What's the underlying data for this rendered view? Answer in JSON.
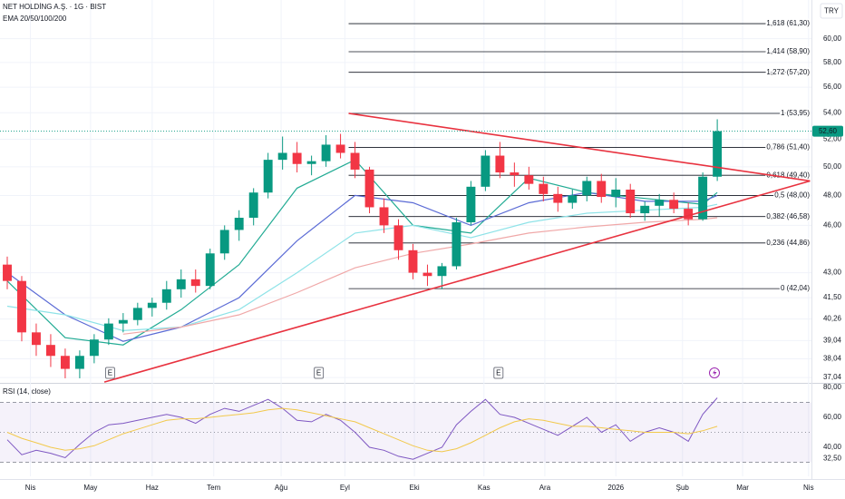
{
  "chart_data": [
    {
      "type": "candlestick",
      "title": "NET HOLDİNG A.Ş. · 1G · BIST",
      "subtitle": "EMA 20/50/100/200",
      "currency": "TRY",
      "log_scale": true,
      "grid": true,
      "up_color": "#089981",
      "down_color": "#f23645",
      "xlim": [
        0,
        56
      ],
      "ylim": [
        36.76,
        63.4
      ],
      "yticks": [
        {
          "value": 37.04,
          "label": "37,04"
        },
        {
          "value": 38.04,
          "label": "38,04"
        },
        {
          "value": 39.04,
          "label": "39,04"
        },
        {
          "value": 40.26,
          "label": "40,26"
        },
        {
          "value": 41.5,
          "label": "41,50"
        },
        {
          "value": 43,
          "label": "43,00"
        },
        {
          "value": 46,
          "label": "46,00"
        },
        {
          "value": 48,
          "label": "48,00"
        },
        {
          "value": 50,
          "label": "50,00"
        },
        {
          "value": 52,
          "label": "52,00"
        },
        {
          "value": 54,
          "label": "54,00"
        },
        {
          "value": 56,
          "label": "56,00"
        },
        {
          "value": 58,
          "label": "58,00"
        },
        {
          "value": 60,
          "label": "60,00"
        }
      ],
      "x": [
        0.5,
        1.5,
        2.5,
        3.5,
        4.5,
        5.5,
        6.5,
        7.5,
        8.5,
        9.5,
        10.5,
        11.5,
        12.5,
        13.5,
        14.5,
        15.5,
        16.5,
        17.5,
        18.5,
        19.5,
        20.5,
        21.5,
        22.5,
        23.5,
        24.5,
        25.5,
        26.5,
        27.5,
        28.5,
        29.5,
        30.5,
        31.5,
        32.5,
        33.5,
        34.5,
        35.5,
        36.5,
        37.5,
        38.5,
        39.5,
        40.5,
        41.5,
        42.5,
        43.5,
        44.5,
        45.5,
        46.5,
        47.5,
        48.5,
        49.5
      ],
      "candles": {
        "open": [
          43.5,
          42.5,
          39.5,
          38.8,
          38.2,
          37.5,
          38.2,
          39.1,
          40,
          40.2,
          40.9,
          41.2,
          42,
          42.6,
          42.2,
          44.2,
          45.7,
          46.5,
          48.2,
          50.5,
          51,
          50.2,
          50.4,
          51.6,
          51,
          49.8,
          47.2,
          46,
          44.4,
          43,
          42.8,
          43.4,
          46.2,
          48.6,
          50.8,
          49.6,
          49.4,
          48.8,
          48.1,
          47.5,
          48,
          49,
          47.9,
          48.4,
          46.8,
          47.3,
          47.7,
          47.1,
          46.4,
          49.3
        ],
        "high": [
          44,
          42.8,
          40,
          39.4,
          38.6,
          38.5,
          39.4,
          40.3,
          40.6,
          41.2,
          41.5,
          42.5,
          43.2,
          43.2,
          44.5,
          46,
          47,
          48.5,
          51,
          52.2,
          51.8,
          50.8,
          52.3,
          52.4,
          51.8,
          50,
          47.8,
          46.4,
          44.8,
          43.5,
          43.6,
          46.5,
          49,
          51.2,
          51.8,
          50.3,
          50,
          49.3,
          48.6,
          48.4,
          49.3,
          49.5,
          49.2,
          48.8,
          47.6,
          48.1,
          48.2,
          47.5,
          49.6,
          53.5
        ],
        "low": [
          42,
          39,
          38.2,
          37.6,
          37,
          37,
          37.8,
          38.8,
          39.5,
          39.9,
          40.4,
          40.8,
          41.5,
          41.8,
          42,
          43.8,
          45,
          46,
          47.8,
          49.8,
          49.6,
          49.4,
          50,
          50.6,
          49.2,
          46.8,
          45.5,
          43.8,
          42.6,
          42.2,
          42,
          43.2,
          46,
          48.3,
          49.2,
          48.6,
          48.4,
          47.6,
          46.9,
          47.1,
          47.6,
          47.5,
          47.2,
          46.5,
          46.3,
          46.6,
          46.8,
          46,
          46.3,
          49
        ],
        "close": [
          42.5,
          39.5,
          38.8,
          38.2,
          37.5,
          38.2,
          39.1,
          40,
          40.2,
          40.9,
          41.2,
          42,
          42.6,
          42.2,
          44.2,
          45.7,
          46.5,
          48.2,
          50.5,
          51,
          50.2,
          50.4,
          51.6,
          51,
          49.8,
          47.2,
          46,
          44.4,
          43,
          42.8,
          43.4,
          46.2,
          48.6,
          50.8,
          49.6,
          49.4,
          48.8,
          48.1,
          47.5,
          48,
          49,
          47.9,
          48.4,
          46.8,
          47.3,
          47.7,
          47.1,
          46.4,
          49.3,
          52.6
        ]
      },
      "series": [
        {
          "color": "#22ab94",
          "x": [
            0.5,
            4.5,
            8.5,
            12.5,
            16.5,
            20.5,
            24.5,
            28.5,
            32.5,
            36.5,
            40.5,
            44.5,
            48.5,
            49.5
          ],
          "values": [
            42.5,
            39.2,
            38.8,
            40.8,
            43.5,
            48.5,
            50.5,
            46,
            45.5,
            49.2,
            48.2,
            47.8,
            47.4,
            48.2
          ]
        },
        {
          "color": "#5b6bd5",
          "x": [
            0.5,
            4.5,
            8.5,
            12.5,
            16.5,
            20.5,
            24.5,
            28.5,
            32.5,
            36.5,
            40.5,
            44.5,
            48.5,
            49.5
          ],
          "values": [
            43,
            40.5,
            39,
            39.8,
            41.5,
            45,
            48,
            47.5,
            46,
            47.5,
            48.2,
            47.6,
            47.6,
            48
          ]
        },
        {
          "color": "#8fe3e8",
          "x": [
            0.5,
            4.5,
            8.5,
            12.5,
            16.5,
            20.5,
            24.5,
            28.5,
            32.5,
            36.5,
            40.5,
            44.5,
            48.5,
            49.5
          ],
          "values": [
            41,
            40.5,
            39.6,
            39.8,
            40.8,
            43,
            45.5,
            46,
            45.2,
            46.2,
            46.8,
            47,
            47.2,
            47.4
          ]
        },
        {
          "color": "#f0a8a8",
          "x": [
            0.5,
            4.5,
            8.5,
            12.5,
            16.5,
            20.5,
            24.5,
            28.5,
            32.5,
            36.5,
            40.5,
            44.5,
            48.5,
            49.5
          ],
          "values": [
            null,
            null,
            39.4,
            39.8,
            40.5,
            41.8,
            43.3,
            44.2,
            44.8,
            45.5,
            45.9,
            46.2,
            46.4,
            46.5
          ]
        }
      ],
      "fib_x": [
        24.06,
        55.9
      ],
      "fib_levels": [
        {
          "value": 61.3,
          "label": "1,618 (61,30)"
        },
        {
          "value": 58.9,
          "label": "1,414 (58,90)"
        },
        {
          "value": 57.2,
          "label": "1,272 (57,20)"
        },
        {
          "value": 53.95,
          "label": "1 (53,95)"
        },
        {
          "value": 51.4,
          "label": "0,786 (51,40)"
        },
        {
          "value": 49.4,
          "label": "0,618 (49,40)"
        },
        {
          "value": 48,
          "label": "0,5 (48,00)"
        },
        {
          "value": 46.58,
          "label": "0,382 (46,58)"
        },
        {
          "value": 44.86,
          "label": "0,236 (44,86)"
        },
        {
          "value": 42.04,
          "label": "0 (42,04)"
        }
      ],
      "trendlines": [
        {
          "x": [
            24.06,
            55.9
          ],
          "y": [
            53.95,
            49.0
          ]
        },
        {
          "x": [
            7.2,
            55.9
          ],
          "y": [
            36.8,
            49.0
          ]
        }
      ],
      "trend_color": "#e8323f",
      "last_price": {
        "value": 52.6,
        "label": "52,60"
      },
      "earnings": [
        {
          "x": 7.6,
          "label": "E"
        },
        {
          "x": 22,
          "label": "E"
        },
        {
          "x": 34.4,
          "label": "E"
        }
      ]
    },
    {
      "type": "line",
      "title": "RSI (14, close)",
      "xlim": [
        0,
        56
      ],
      "ylim": [
        20.6,
        82.4
      ],
      "yticks": [
        {
          "value": 80,
          "label": "80,00"
        },
        {
          "value": 60,
          "label": "60,00"
        },
        {
          "value": 40,
          "label": "40,00"
        },
        {
          "value": 32.5,
          "label": "32,50"
        }
      ],
      "bands": [
        70,
        50,
        30
      ],
      "xticks": [
        {
          "value": 2.1,
          "label": "Nis"
        },
        {
          "value": 6.25,
          "label": "May"
        },
        {
          "value": 10.5,
          "label": "Haz"
        },
        {
          "value": 14.75,
          "label": "Tem"
        },
        {
          "value": 19.4,
          "label": "Ağu"
        },
        {
          "value": 23.8,
          "label": "Eyl"
        },
        {
          "value": 28.6,
          "label": "Eki"
        },
        {
          "value": 33.4,
          "label": "Kas"
        },
        {
          "value": 37.6,
          "label": "Ara"
        },
        {
          "value": 42.5,
          "label": "2026"
        },
        {
          "value": 47.1,
          "label": "Şub"
        },
        {
          "value": 51.25,
          "label": "Mar"
        },
        {
          "value": 55.8,
          "label": "Nis"
        }
      ],
      "series": [
        {
          "color": "#7e57c2",
          "x": [
            0.5,
            1.5,
            2.5,
            3.5,
            4.5,
            5.5,
            6.5,
            7.5,
            8.5,
            9.5,
            10.5,
            11.5,
            12.5,
            13.5,
            14.5,
            15.5,
            16.5,
            17.5,
            18.5,
            19.5,
            20.5,
            21.5,
            22.5,
            23.5,
            24.5,
            25.5,
            26.5,
            27.5,
            28.5,
            29.5,
            30.5,
            31.5,
            32.5,
            33.5,
            34.5,
            35.5,
            36.5,
            37.5,
            38.5,
            39.5,
            40.5,
            41.5,
            42.5,
            43.5,
            44.5,
            45.5,
            46.5,
            47.5,
            48.5,
            49.5
          ],
          "values": [
            45,
            35,
            38,
            36,
            33,
            42,
            50,
            55,
            56,
            58,
            60,
            62,
            60,
            56,
            62,
            66,
            64,
            68,
            72,
            66,
            58,
            57,
            62,
            58,
            50,
            40,
            38,
            34,
            32,
            36,
            40,
            55,
            64,
            72,
            62,
            60,
            56,
            52,
            48,
            54,
            60,
            50,
            55,
            44,
            50,
            53,
            50,
            44,
            62,
            73
          ]
        },
        {
          "color": "#f2c94c",
          "x": [
            0.5,
            1.5,
            2.5,
            3.5,
            4.5,
            5.5,
            6.5,
            7.5,
            8.5,
            9.5,
            10.5,
            11.5,
            12.5,
            13.5,
            14.5,
            15.5,
            16.5,
            17.5,
            18.5,
            19.5,
            20.5,
            21.5,
            22.5,
            23.5,
            24.5,
            25.5,
            26.5,
            27.5,
            28.5,
            29.5,
            30.5,
            31.5,
            32.5,
            33.5,
            34.5,
            35.5,
            36.5,
            37.5,
            38.5,
            39.5,
            40.5,
            41.5,
            42.5,
            43.5,
            44.5,
            45.5,
            46.5,
            47.5,
            48.5,
            49.5
          ],
          "values": [
            50,
            46,
            43,
            40,
            38,
            39,
            41,
            45,
            49,
            52,
            55,
            58,
            59,
            59,
            60,
            61,
            62,
            63,
            65,
            66,
            65,
            63,
            61,
            59,
            57,
            53,
            49,
            45,
            41,
            38,
            37,
            39,
            43,
            48,
            53,
            57,
            59,
            58,
            56,
            54,
            54,
            53,
            52,
            51,
            50,
            50,
            50,
            49,
            51,
            54
          ]
        }
      ]
    }
  ]
}
